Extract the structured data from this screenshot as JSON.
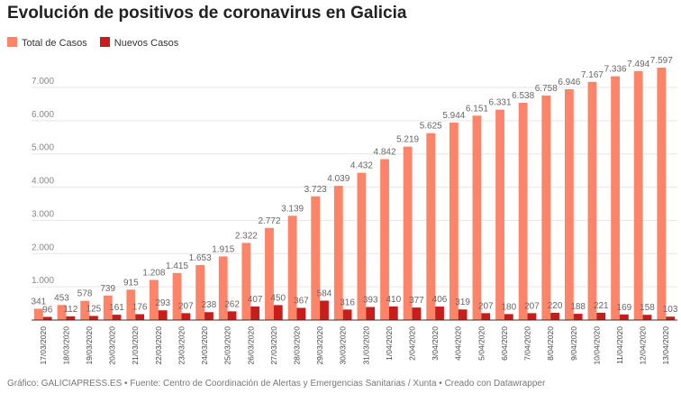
{
  "title": "Evolución de positivos de coronavirus en Galicia",
  "footer": "Gráfico: GALICIAPRESS.ES • Fuente: Centro de Coordinación de Alertas y Emergencias Sanitarias / Xunta • Creado con Datawrapper",
  "chart_data": {
    "type": "bar",
    "title": "Evolución de positivos de coronavirus en Galicia",
    "categories": [
      "17/03/2020",
      "18/03/2020",
      "19/03/2020",
      "20/03/2020",
      "21/03/2020",
      "22/03/2020",
      "23/03/2020",
      "24/03/2020",
      "25/03/2020",
      "26/03/2020",
      "27/03/2020",
      "28/03/2020",
      "29/03/2020",
      "30/03/2020",
      "31/03/2020",
      "1/04/2020",
      "2/04/2020",
      "3/04/2020",
      "4/04/2020",
      "5/04/2020",
      "6/04/2020",
      "7/04/2020",
      "8/04/2020",
      "9/04/2020",
      "10/04/2020",
      "11/04/2020",
      "12/04/2020",
      "13/04/2020"
    ],
    "series": [
      {
        "name": "Total de Casos",
        "color": "#fd8469",
        "values": [
          341,
          453,
          578,
          739,
          915,
          1208,
          1415,
          1653,
          1915,
          2322,
          2772,
          3139,
          3723,
          4039,
          4432,
          4842,
          5219,
          5625,
          5944,
          6151,
          6331,
          6538,
          6758,
          6946,
          7167,
          7336,
          7494,
          7597
        ]
      },
      {
        "name": "Nuevos Casos",
        "color": "#c71e1d",
        "values": [
          96,
          112,
          125,
          161,
          176,
          293,
          207,
          238,
          262,
          407,
          450,
          367,
          584,
          316,
          393,
          410,
          377,
          406,
          319,
          207,
          180,
          207,
          220,
          188,
          221,
          169,
          158,
          103
        ]
      }
    ],
    "yticks": [
      1000,
      2000,
      3000,
      4000,
      5000,
      6000,
      7000
    ],
    "ytick_labels": [
      "1.000",
      "2.000",
      "3.000",
      "4.000",
      "5.000",
      "6.000",
      "7.000"
    ],
    "ylim": [
      0,
      7700
    ],
    "grid": true,
    "legend": "top-left"
  }
}
